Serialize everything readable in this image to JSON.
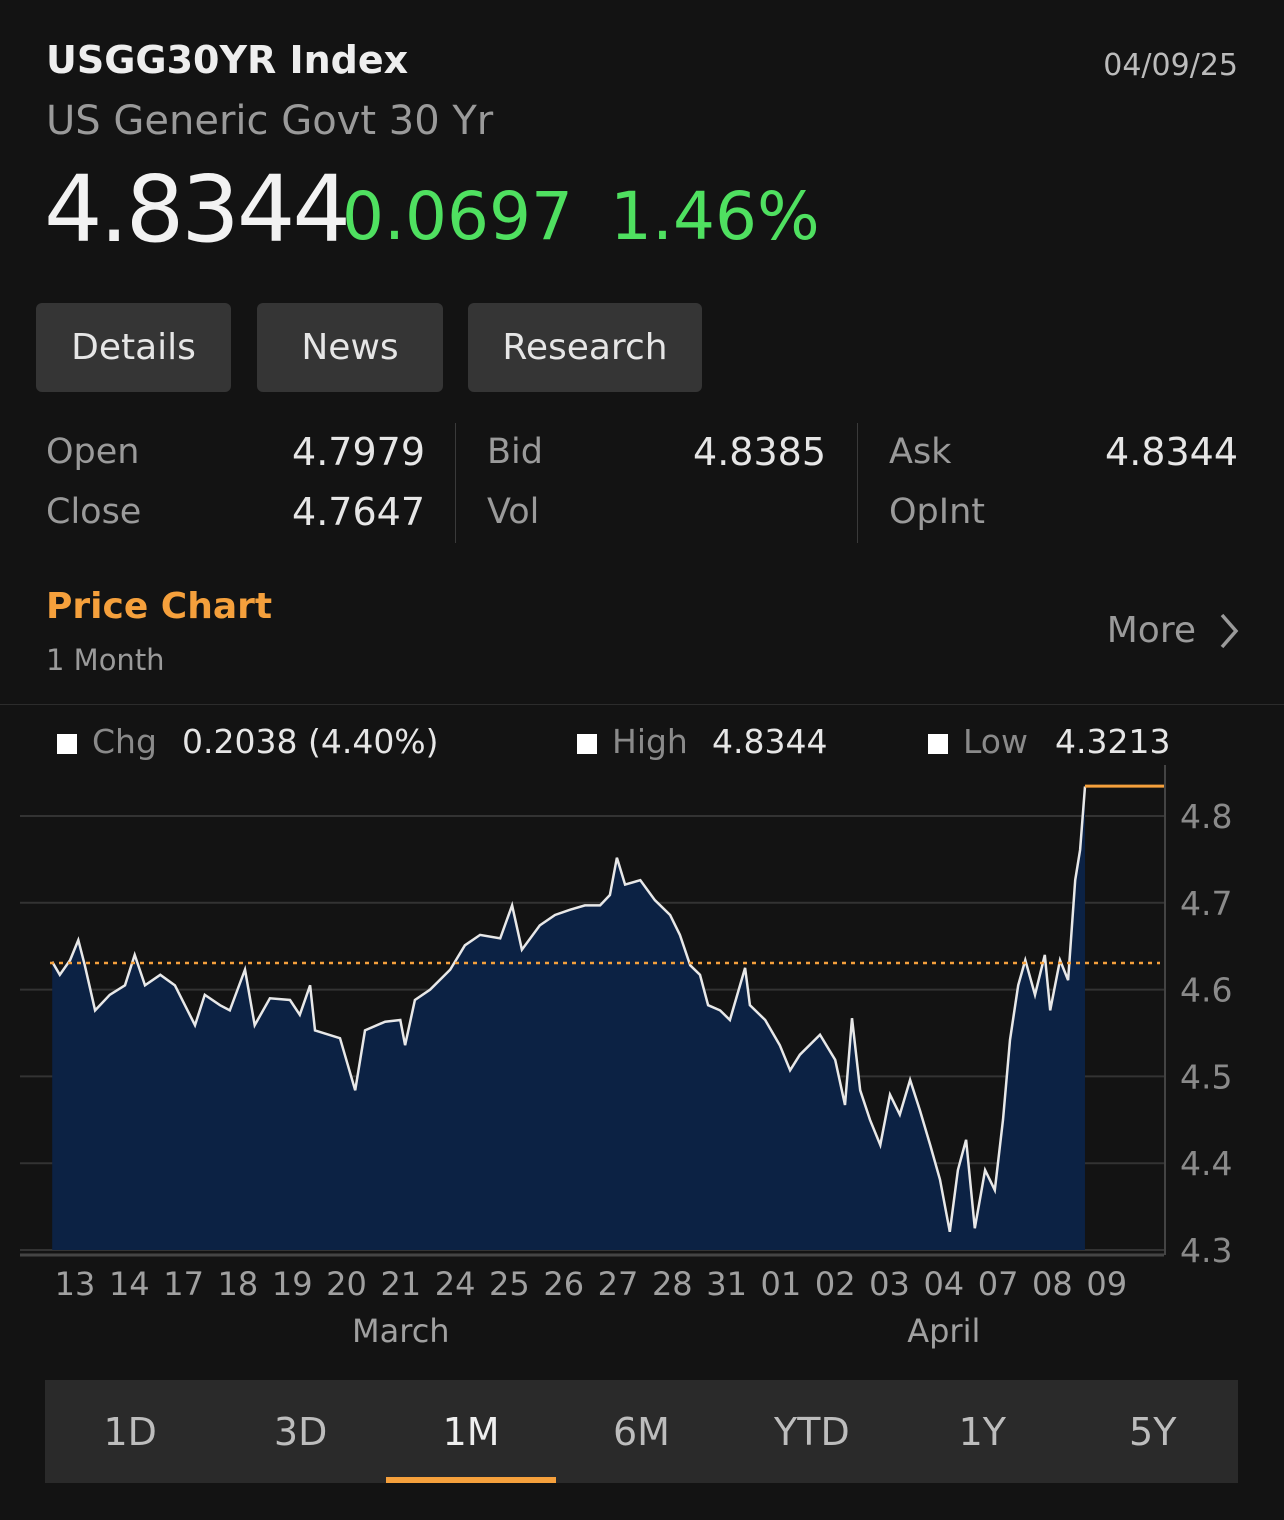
{
  "header": {
    "ticker": "USGG30YR Index",
    "name": "US Generic Govt 30 Yr",
    "date": "04/09/25",
    "last": "4.8344",
    "change": "0.0697",
    "change_pct": "1.46%"
  },
  "buttons": [
    "Details",
    "News",
    "Research"
  ],
  "stats": {
    "open": {
      "label": "Open",
      "value": "4.7979"
    },
    "close": {
      "label": "Close",
      "value": "4.7647"
    },
    "bid": {
      "label": "Bid",
      "value": "4.8385"
    },
    "vol": {
      "label": "Vol",
      "value": ""
    },
    "ask": {
      "label": "Ask",
      "value": "4.8344"
    },
    "opint": {
      "label": "OpInt",
      "value": ""
    }
  },
  "price_chart": {
    "title": "Price Chart",
    "range": "1 Month",
    "more": "More"
  },
  "legend": {
    "chg_label": "Chg",
    "chg_value": "0.2038 (4.40%)",
    "high_label": "High",
    "high_value": "4.8344",
    "low_label": "Low",
    "low_value": "4.3213"
  },
  "colors": {
    "up": "#4fe060",
    "accent": "#f5a03c",
    "area": "#0c2244",
    "line": "#e8e8e8"
  },
  "chart_data": {
    "type": "area",
    "x_ticks": [
      "13",
      "14",
      "17",
      "18",
      "19",
      "20",
      "21",
      "24",
      "25",
      "26",
      "27",
      "28",
      "31",
      "01",
      "02",
      "03",
      "04",
      "07",
      "08",
      "09"
    ],
    "month_labels": [
      {
        "label": "March",
        "at": "21"
      },
      {
        "label": "April",
        "at": "04"
      }
    ],
    "y_ticks": [
      "4.3",
      "4.4",
      "4.5",
      "4.6",
      "4.7",
      "4.8"
    ],
    "ylim": [
      4.3,
      4.85
    ],
    "previous_close": 4.6306,
    "last": 4.8344,
    "grid": true,
    "points": [
      [
        -0.42,
        4.632
      ],
      [
        -0.28,
        4.617
      ],
      [
        -0.09,
        4.634
      ],
      [
        0.06,
        4.657
      ],
      [
        0.18,
        4.628
      ],
      [
        0.37,
        4.576
      ],
      [
        0.64,
        4.594
      ],
      [
        0.92,
        4.605
      ],
      [
        1.1,
        4.64
      ],
      [
        1.29,
        4.605
      ],
      [
        1.57,
        4.617
      ],
      [
        1.84,
        4.605
      ],
      [
        2.21,
        4.559
      ],
      [
        2.39,
        4.594
      ],
      [
        2.67,
        4.582
      ],
      [
        2.85,
        4.576
      ],
      [
        3.13,
        4.623
      ],
      [
        3.31,
        4.559
      ],
      [
        3.59,
        4.59
      ],
      [
        3.96,
        4.588
      ],
      [
        4.14,
        4.571
      ],
      [
        4.33,
        4.605
      ],
      [
        4.42,
        4.553
      ],
      [
        4.88,
        4.544
      ],
      [
        5.16,
        4.484
      ],
      [
        5.34,
        4.553
      ],
      [
        5.71,
        4.563
      ],
      [
        5.99,
        4.565
      ],
      [
        6.08,
        4.536
      ],
      [
        6.26,
        4.588
      ],
      [
        6.54,
        4.6
      ],
      [
        6.91,
        4.623
      ],
      [
        7.18,
        4.651
      ],
      [
        7.46,
        4.663
      ],
      [
        7.83,
        4.659
      ],
      [
        8.05,
        4.697
      ],
      [
        8.23,
        4.646
      ],
      [
        8.56,
        4.674
      ],
      [
        8.84,
        4.686
      ],
      [
        9.12,
        4.692
      ],
      [
        9.39,
        4.697
      ],
      [
        9.67,
        4.697
      ],
      [
        9.85,
        4.709
      ],
      [
        9.98,
        4.752
      ],
      [
        10.13,
        4.721
      ],
      [
        10.41,
        4.726
      ],
      [
        10.68,
        4.703
      ],
      [
        10.96,
        4.686
      ],
      [
        11.14,
        4.663
      ],
      [
        11.33,
        4.628
      ],
      [
        11.51,
        4.617
      ],
      [
        11.66,
        4.582
      ],
      [
        11.88,
        4.576
      ],
      [
        12.06,
        4.565
      ],
      [
        12.34,
        4.625
      ],
      [
        12.43,
        4.582
      ],
      [
        12.71,
        4.565
      ],
      [
        12.98,
        4.536
      ],
      [
        13.17,
        4.507
      ],
      [
        13.35,
        4.525
      ],
      [
        13.72,
        4.548
      ],
      [
        14.0,
        4.519
      ],
      [
        14.18,
        4.467
      ],
      [
        14.31,
        4.567
      ],
      [
        14.46,
        4.484
      ],
      [
        14.64,
        4.45
      ],
      [
        14.83,
        4.421
      ],
      [
        15.01,
        4.479
      ],
      [
        15.19,
        4.456
      ],
      [
        15.38,
        4.496
      ],
      [
        15.56,
        4.461
      ],
      [
        15.75,
        4.421
      ],
      [
        15.93,
        4.381
      ],
      [
        16.11,
        4.321
      ],
      [
        16.26,
        4.392
      ],
      [
        16.41,
        4.427
      ],
      [
        16.57,
        4.325
      ],
      [
        16.76,
        4.392
      ],
      [
        16.94,
        4.369
      ],
      [
        17.09,
        4.45
      ],
      [
        17.22,
        4.542
      ],
      [
        17.37,
        4.605
      ],
      [
        17.5,
        4.634
      ],
      [
        17.68,
        4.594
      ],
      [
        17.86,
        4.64
      ],
      [
        17.96,
        4.576
      ],
      [
        18.14,
        4.634
      ],
      [
        18.29,
        4.611
      ],
      [
        18.42,
        4.726
      ],
      [
        18.51,
        4.761
      ],
      [
        18.6,
        4.834
      ]
    ]
  },
  "tabs": {
    "items": [
      "1D",
      "3D",
      "1M",
      "6M",
      "YTD",
      "1Y",
      "5Y"
    ],
    "active": "1M"
  }
}
